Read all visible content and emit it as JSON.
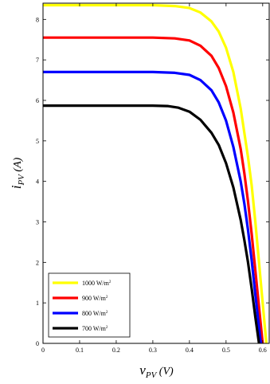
{
  "chart_data": {
    "type": "line",
    "xlabel": {
      "main": "v",
      "sub": "PV",
      "unit": "(V)"
    },
    "ylabel": {
      "main": "i",
      "sub": "PV",
      "unit": "(A)"
    },
    "xlim": [
      0,
      0.62
    ],
    "ylim": [
      0,
      8.4
    ],
    "xticks": [
      "0",
      "0.1",
      "0.2",
      "0.3",
      "0.4",
      "0.5",
      "0.6"
    ],
    "yticks": [
      "0",
      "1",
      "2",
      "3",
      "4",
      "5",
      "6",
      "7",
      "8"
    ],
    "grid": false,
    "legend_position": "bottom-left",
    "series": [
      {
        "name": "1000 W/m",
        "name_sup": "2",
        "color": "#ffff00",
        "points": [
          [
            0,
            8.35
          ],
          [
            0.3,
            8.35
          ],
          [
            0.36,
            8.33
          ],
          [
            0.4,
            8.28
          ],
          [
            0.43,
            8.17
          ],
          [
            0.46,
            7.95
          ],
          [
            0.48,
            7.7
          ],
          [
            0.5,
            7.3
          ],
          [
            0.52,
            6.7
          ],
          [
            0.54,
            5.8
          ],
          [
            0.56,
            4.6
          ],
          [
            0.57,
            3.9
          ],
          [
            0.58,
            3.0
          ],
          [
            0.59,
            2.0
          ],
          [
            0.6,
            1.0
          ],
          [
            0.605,
            0.5
          ],
          [
            0.61,
            0.0
          ]
        ]
      },
      {
        "name": "900 W/m",
        "name_sup": "2",
        "color": "#ff0000",
        "points": [
          [
            0,
            7.55
          ],
          [
            0.3,
            7.55
          ],
          [
            0.36,
            7.53
          ],
          [
            0.4,
            7.48
          ],
          [
            0.43,
            7.35
          ],
          [
            0.46,
            7.1
          ],
          [
            0.48,
            6.8
          ],
          [
            0.5,
            6.35
          ],
          [
            0.52,
            5.7
          ],
          [
            0.54,
            4.8
          ],
          [
            0.55,
            4.2
          ],
          [
            0.56,
            3.5
          ],
          [
            0.57,
            2.7
          ],
          [
            0.58,
            1.8
          ],
          [
            0.59,
            0.9
          ],
          [
            0.6,
            0.0
          ]
        ]
      },
      {
        "name": "800 W/m",
        "name_sup": "2",
        "color": "#0000ff",
        "points": [
          [
            0,
            6.7
          ],
          [
            0.3,
            6.7
          ],
          [
            0.36,
            6.68
          ],
          [
            0.4,
            6.63
          ],
          [
            0.43,
            6.5
          ],
          [
            0.46,
            6.25
          ],
          [
            0.48,
            5.95
          ],
          [
            0.5,
            5.5
          ],
          [
            0.52,
            4.85
          ],
          [
            0.54,
            4.0
          ],
          [
            0.55,
            3.45
          ],
          [
            0.56,
            2.8
          ],
          [
            0.57,
            2.05
          ],
          [
            0.58,
            1.2
          ],
          [
            0.59,
            0.4
          ],
          [
            0.595,
            0.0
          ]
        ]
      },
      {
        "name": "700 W/m",
        "name_sup": "2",
        "color": "#000000",
        "points": [
          [
            0,
            5.87
          ],
          [
            0.3,
            5.87
          ],
          [
            0.34,
            5.86
          ],
          [
            0.37,
            5.82
          ],
          [
            0.4,
            5.72
          ],
          [
            0.43,
            5.52
          ],
          [
            0.46,
            5.2
          ],
          [
            0.48,
            4.9
          ],
          [
            0.5,
            4.45
          ],
          [
            0.52,
            3.85
          ],
          [
            0.54,
            3.05
          ],
          [
            0.55,
            2.55
          ],
          [
            0.56,
            2.0
          ],
          [
            0.57,
            1.35
          ],
          [
            0.58,
            0.65
          ],
          [
            0.59,
            0.0
          ]
        ]
      }
    ]
  }
}
